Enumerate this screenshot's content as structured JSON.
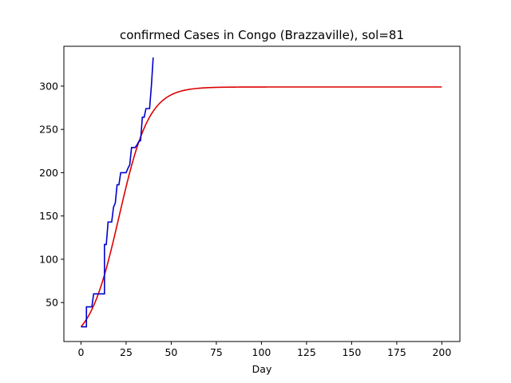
{
  "chart_data": {
    "type": "line",
    "title": "confirmed Cases in Congo (Brazzaville), sol=81",
    "xlabel": "Day",
    "ylabel": "",
    "xlim": [
      -9.5,
      210
    ],
    "ylim": [
      5,
      346
    ],
    "xticks": [
      0,
      25,
      50,
      75,
      100,
      125,
      150,
      175,
      200
    ],
    "yticks": [
      50,
      100,
      150,
      200,
      250,
      300
    ],
    "grid": false,
    "legend": "none",
    "series": [
      {
        "color": "#0000cc",
        "drawstyle": "steps",
        "x": [
          0,
          3,
          3,
          4,
          5,
          6,
          7,
          8,
          9,
          10,
          11,
          12,
          13,
          13,
          14,
          15,
          16,
          17,
          18,
          19,
          20,
          21,
          22,
          23,
          24,
          25,
          26,
          27,
          28,
          29,
          30,
          31,
          32,
          33,
          34,
          35,
          36,
          37,
          38,
          39,
          40
        ],
        "y": [
          22,
          22,
          45,
          45,
          45,
          45,
          60,
          60,
          60,
          60,
          60,
          60,
          60,
          117,
          117,
          143,
          143,
          143,
          160,
          165,
          186,
          186,
          200,
          200,
          200,
          200,
          205,
          209,
          229,
          229,
          229,
          232,
          236,
          237,
          264,
          264,
          274,
          274,
          274,
          300,
          333
        ]
      },
      {
        "color": "#dd0000",
        "model": "logistic",
        "K": 299,
        "r": 0.12,
        "y0": 22,
        "xrange": [
          0,
          200
        ]
      }
    ]
  }
}
